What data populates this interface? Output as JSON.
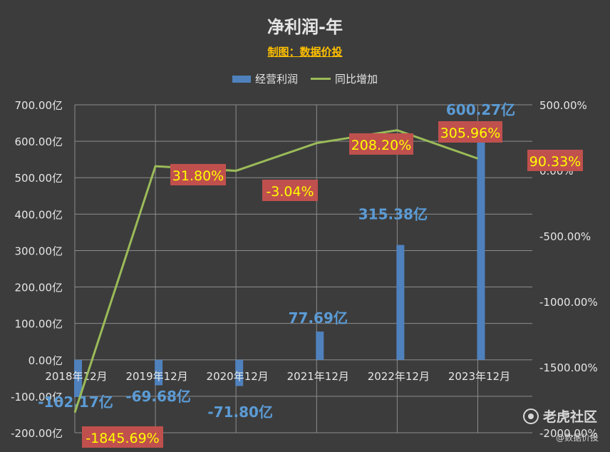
{
  "title": "净利润-年",
  "subtitle": "制图：数据价投",
  "legend": {
    "bar_label": "经营利润",
    "line_label": "同比增加"
  },
  "colors": {
    "background": "#3c3c3c",
    "bar": "#4f81bd",
    "line": "#9bbb59",
    "line_label_bg": "#c0504d",
    "line_label_text": "#ffff00",
    "bar_label_text": "#5b9bd5",
    "axis_text": "#e6e6e6",
    "grid": "#8c8c8c"
  },
  "watermark": {
    "brand": "老虎社区",
    "handle": "@数据价投"
  },
  "chart_data": {
    "type": "bar+line",
    "categories": [
      "2018年12月",
      "2019年12月",
      "2020年12月",
      "2021年12月",
      "2022年12月",
      "2023年12月"
    ],
    "series": [
      {
        "name": "经营利润",
        "type": "bar",
        "axis": "left",
        "values": [
          -102.17,
          -69.68,
          -71.8,
          77.69,
          315.38,
          600.27
        ],
        "labels": [
          "-102.17亿",
          "-69.68亿",
          "-71.80亿",
          "77.69亿",
          "315.38亿",
          "600.27亿"
        ]
      },
      {
        "name": "同比增加",
        "type": "line",
        "axis": "right",
        "values": [
          -1845.69,
          31.8,
          -3.04,
          208.2,
          305.96,
          90.33
        ],
        "labels": [
          "-1845.69%",
          "31.80%",
          "-3.04%",
          "208.20%",
          "305.96%",
          "90.33%"
        ]
      }
    ],
    "y_left": {
      "range": [
        -200,
        700
      ],
      "ticks": [
        700,
        600,
        500,
        400,
        300,
        200,
        100,
        0,
        -100,
        -200
      ],
      "tick_labels": [
        "700.00亿",
        "600.00亿",
        "500.00亿",
        "400.00亿",
        "300.00亿",
        "200.00亿",
        "100.00亿",
        "0.00亿",
        "-100.00亿",
        "-200.00亿"
      ]
    },
    "y_right": {
      "range": [
        -2000,
        500
      ],
      "ticks": [
        500,
        0,
        -500,
        -1000,
        -1500,
        -2000
      ],
      "tick_labels": [
        "500.00%",
        "0.00%",
        "-500.00%",
        "-1000.00%",
        "-1500.00%",
        "-2000.00%"
      ]
    },
    "grid": true,
    "legend_position": "top"
  }
}
